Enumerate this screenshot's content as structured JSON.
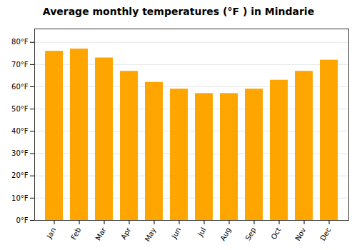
{
  "chart_data": {
    "type": "bar",
    "title": "Average monthly temperatures (°F ) in Mindarie",
    "categories": [
      "Jan",
      "Feb",
      "Mar",
      "Apr",
      "May",
      "Jun",
      "Jul",
      "Aug",
      "Sep",
      "Oct",
      "Nov",
      "Dec"
    ],
    "values": [
      76,
      77,
      73,
      67,
      62,
      59,
      57,
      57,
      59,
      63,
      67,
      72
    ],
    "color": "#FFA500",
    "ylim": [
      0,
      86
    ],
    "yticks": [
      {
        "value": 0,
        "label": "0°F"
      },
      {
        "value": 10,
        "label": "10°F"
      },
      {
        "value": 20,
        "label": "20°F"
      },
      {
        "value": 30,
        "label": "30°F"
      },
      {
        "value": 40,
        "label": "40°F"
      },
      {
        "value": 50,
        "label": "50°F"
      },
      {
        "value": 60,
        "label": "60°F"
      },
      {
        "value": 70,
        "label": "70°F"
      },
      {
        "value": 80,
        "label": "80°F"
      }
    ],
    "grid": true
  }
}
